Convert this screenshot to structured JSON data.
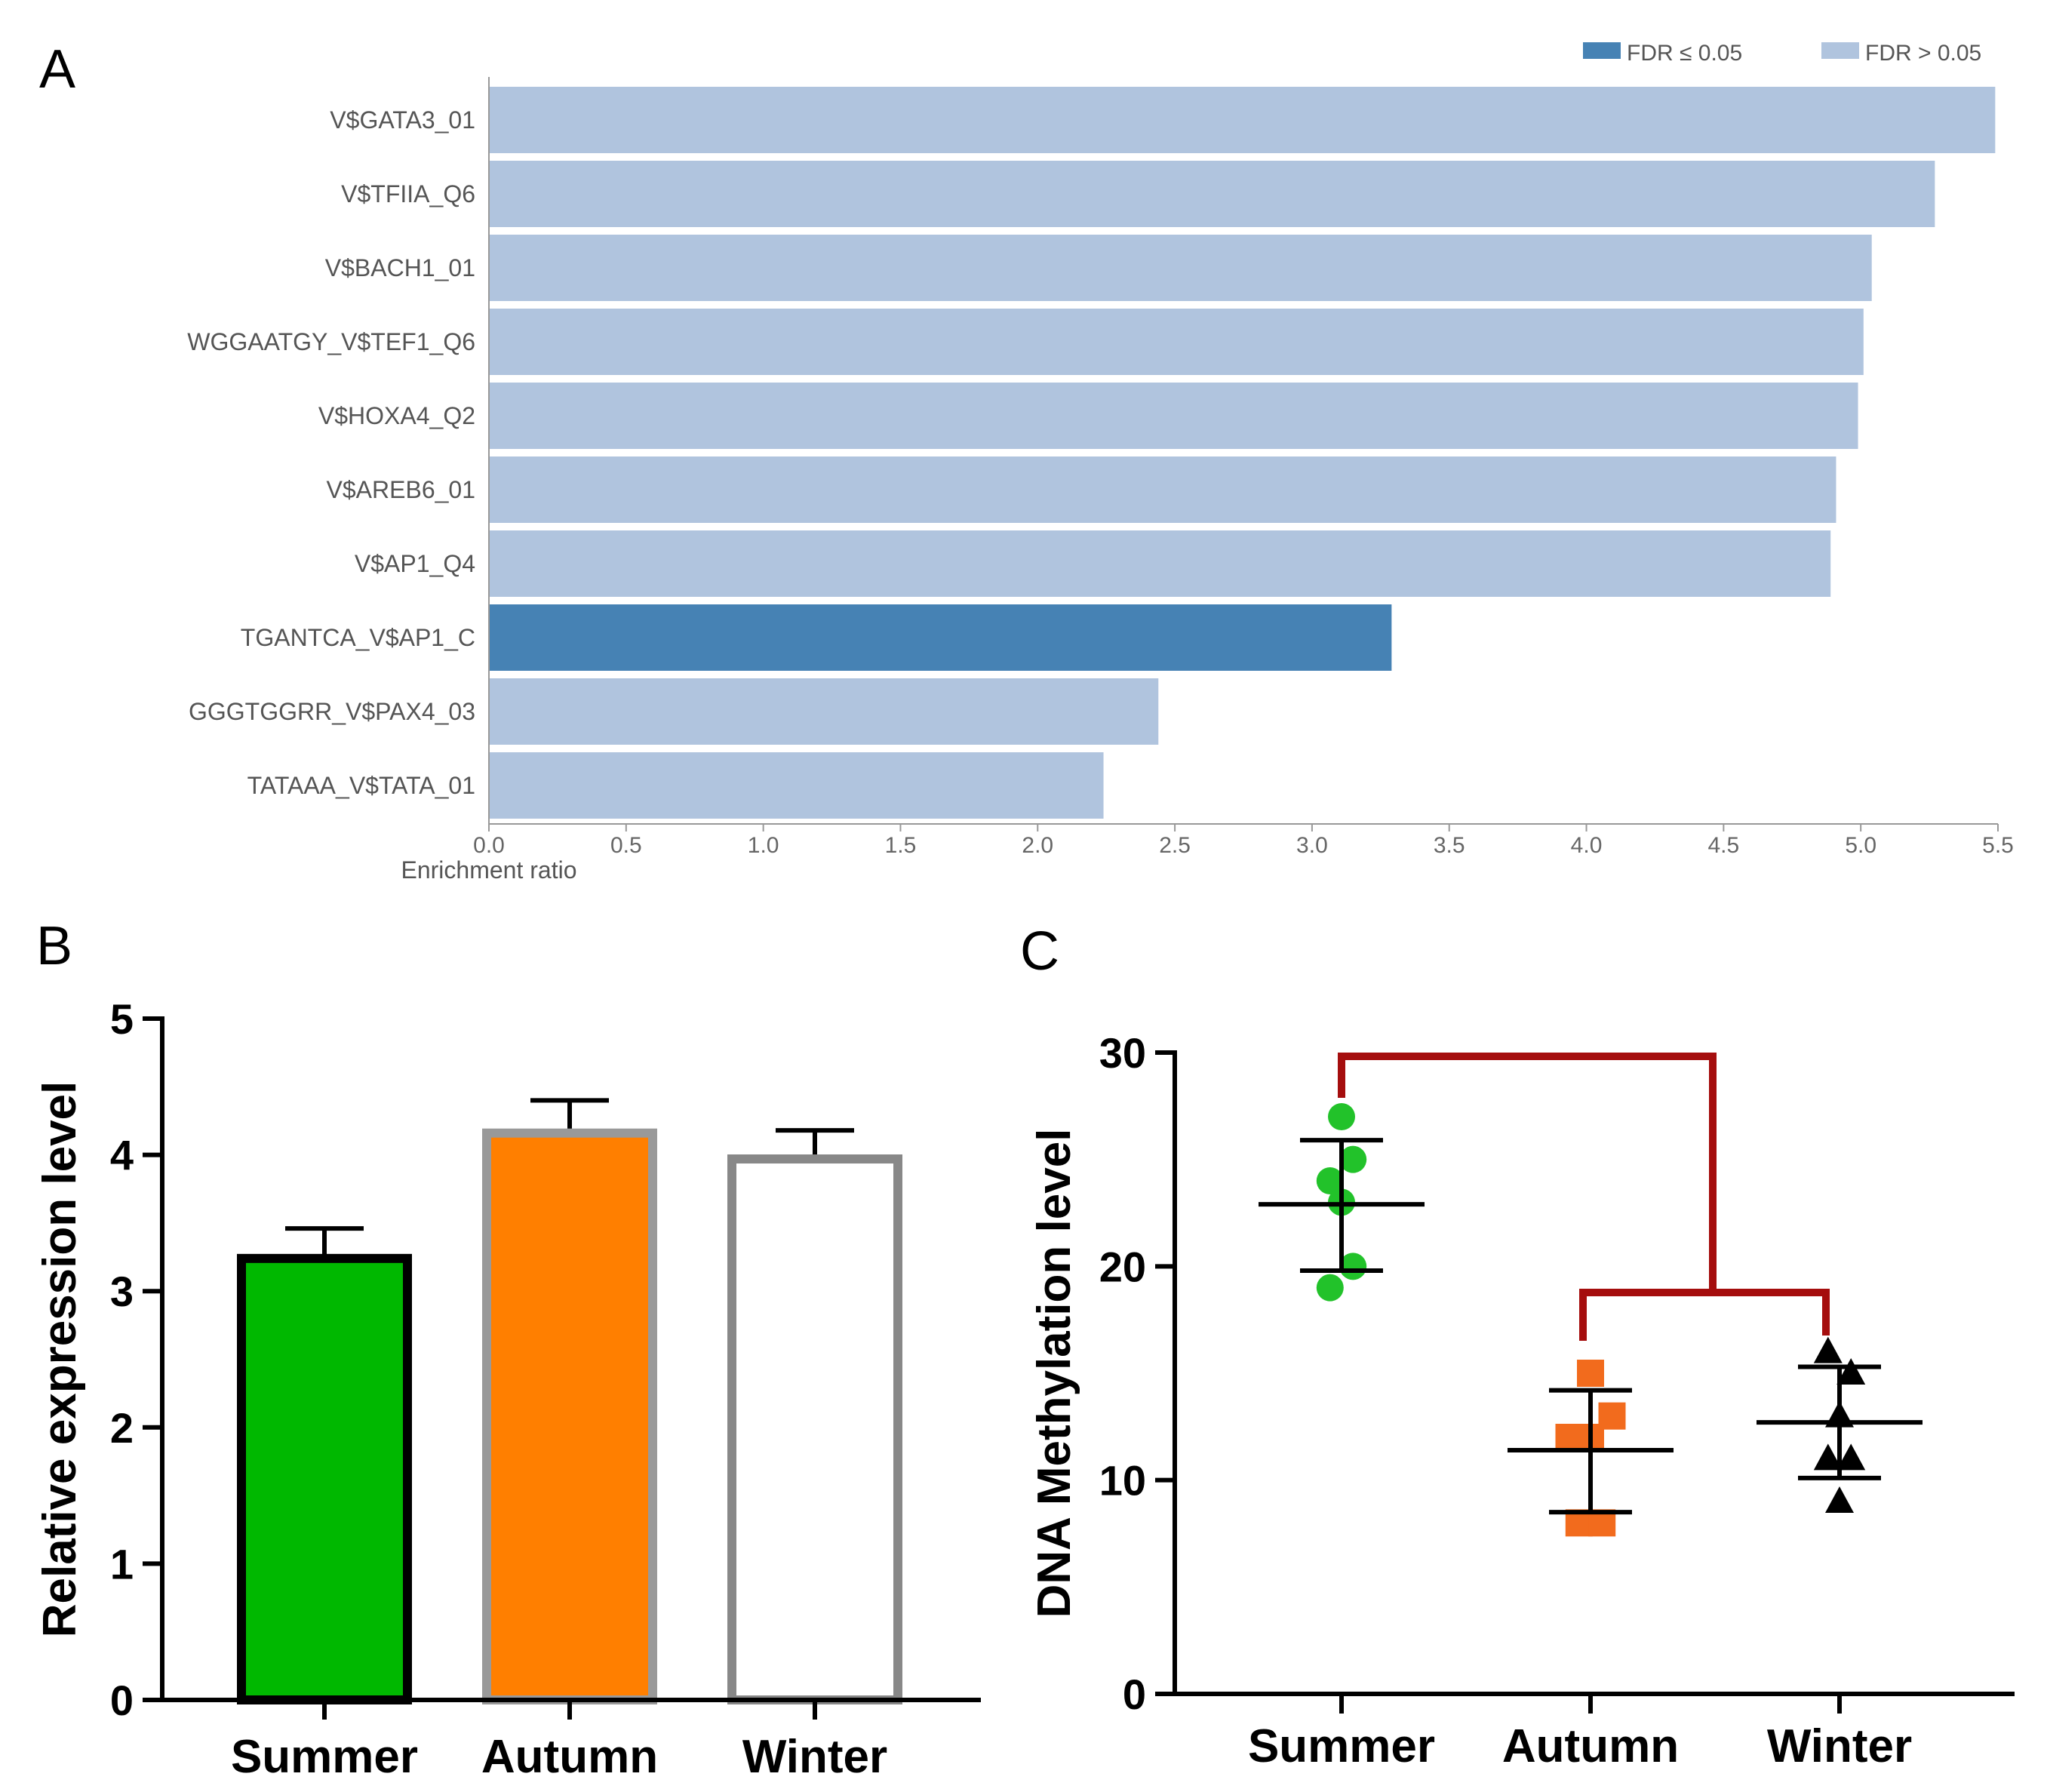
{
  "panels": {
    "a": "A",
    "b": "B",
    "c": "C"
  },
  "chart_data": [
    {
      "id": "A",
      "type": "bar",
      "orientation": "horizontal",
      "xlabel": "Enrichment ratio",
      "xlim": [
        0,
        5.5
      ],
      "xticks": [
        "0.0",
        "0.5",
        "1.0",
        "1.5",
        "2.0",
        "2.5",
        "3.0",
        "3.5",
        "4.0",
        "4.5",
        "5.0",
        "5.5"
      ],
      "categories": [
        "V$GATA3_01",
        "V$TFIIA_Q6",
        "V$BACH1_01",
        "WGGAATGY_V$TEF1_Q6",
        "V$HOXA4_Q2",
        "V$AREB6_01",
        "V$AP1_Q4",
        "TGANTCA_V$AP1_C",
        "GGGTGGRR_V$PAX4_03",
        "TATAAA_V$TATA_01"
      ],
      "values": [
        5.49,
        5.27,
        5.04,
        5.01,
        4.99,
        4.91,
        4.89,
        3.29,
        2.44,
        2.24
      ],
      "significant": [
        false,
        false,
        false,
        false,
        false,
        false,
        false,
        true,
        false,
        false
      ],
      "legend": [
        {
          "label": "FDR ≤ 0.05",
          "color": "#4682b4"
        },
        {
          "label": "FDR > 0.05",
          "color": "#b0c4de"
        }
      ],
      "legend_position": "top-right"
    },
    {
      "id": "B",
      "type": "bar",
      "ylabel": "Relative expression level",
      "ylim": [
        0,
        5
      ],
      "yticks": [
        "0",
        "1",
        "2",
        "3",
        "4",
        "5"
      ],
      "categories": [
        "Summer",
        "Autumn",
        "Winter"
      ],
      "values": [
        3.24,
        4.16,
        3.97
      ],
      "error_upper": [
        3.46,
        4.4,
        4.18
      ],
      "fills": [
        "#00b800",
        "#ff7f00",
        "#ffffff"
      ],
      "outlines": [
        "#000000",
        "#999999",
        "#888888"
      ]
    },
    {
      "id": "C",
      "type": "scatter",
      "ylabel": "DNA Methylation level",
      "ylim": [
        0,
        30
      ],
      "yticks": [
        "0",
        "10",
        "20",
        "30"
      ],
      "categories": [
        "Summer",
        "Autumn",
        "Winter"
      ],
      "series": [
        {
          "name": "Summer",
          "color": "#22c22a",
          "marker": "circle",
          "points": [
            [
              0.0,
              27.0
            ],
            [
              -0.08,
              24.0
            ],
            [
              0.08,
              25.0
            ],
            [
              0.0,
              23.0
            ],
            [
              0.08,
              20.0
            ],
            [
              -0.08,
              19.0
            ]
          ],
          "mean": 22.9,
          "sd_upper": 25.9,
          "sd_lower": 19.8
        },
        {
          "name": "Autumn",
          "color": "#f26b1d",
          "marker": "square",
          "points": [
            [
              0.0,
              15.0
            ],
            [
              0.15,
              13.0
            ],
            [
              -0.15,
              12.0
            ],
            [
              0.0,
              12.0
            ],
            [
              -0.08,
              8.0
            ],
            [
              0.08,
              8.0
            ]
          ],
          "mean": 11.4,
          "sd_upper": 14.2,
          "sd_lower": 8.5
        },
        {
          "name": "Winter",
          "color": "#000000",
          "marker": "triangle",
          "points": [
            [
              -0.08,
              16.0
            ],
            [
              0.08,
              15.0
            ],
            [
              0.0,
              13.0
            ],
            [
              -0.08,
              11.0
            ],
            [
              0.08,
              11.0
            ],
            [
              0.0,
              9.0
            ]
          ],
          "mean": 12.7,
          "sd_upper": 15.3,
          "sd_lower": 10.1
        }
      ],
      "brackets": [
        {
          "from": "Autumn",
          "to": "Winter"
        },
        {
          "from": "Summer",
          "to": "Autumn-Winter"
        }
      ],
      "bracket_color": "#a50e0e"
    }
  ]
}
